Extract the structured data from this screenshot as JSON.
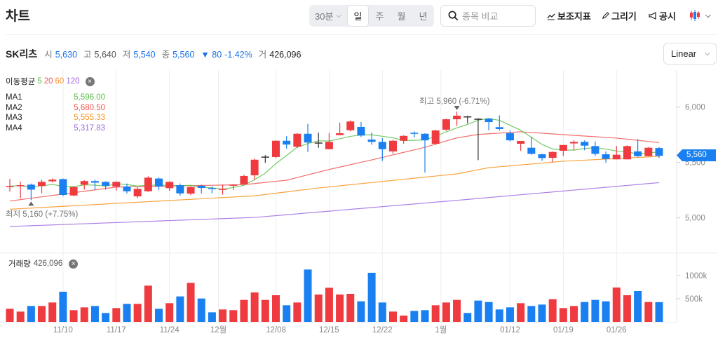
{
  "header": {
    "title": "차트",
    "interval": "30분",
    "periods": [
      "일",
      "주",
      "월",
      "년"
    ],
    "selected_period": "일",
    "search_placeholder": "종목 비교",
    "tools": [
      "보조지표",
      "그리기",
      "공시"
    ],
    "chart_type_icon": "candlestick-icon"
  },
  "stock": {
    "name": "SK리츠",
    "open_label": "시",
    "open": "5,630",
    "high_label": "고",
    "high": "5,640",
    "low_label": "저",
    "low": "5,540",
    "close_label": "종",
    "close": "5,560",
    "change": "▼ 80",
    "change_pct": "-1.42%",
    "volume_label": "거",
    "volume": "426,096"
  },
  "scale_select": "Linear",
  "ma_legend": {
    "label": "이동평균",
    "periods": [
      "5",
      "20",
      "60",
      "120"
    ],
    "rows": [
      {
        "name": "MA1",
        "value": "5,596.00",
        "color": "#5cc04a"
      },
      {
        "name": "MA2",
        "value": "5,680.50",
        "color": "#ef5350"
      },
      {
        "name": "MA3",
        "value": "5,555.33",
        "color": "#f7931e"
      },
      {
        "name": "MA4",
        "value": "5,317.83",
        "color": "#a06ae0"
      }
    ]
  },
  "volume_legend": {
    "label": "거래량",
    "value": "426,096"
  },
  "annotations": {
    "high": "최고  5,960 (-6.71%)",
    "low": "최저  5,160 (+7.75%)",
    "last_price": "5,560"
  },
  "colors": {
    "up": "#ef3a3f",
    "down": "#1a7ff0",
    "flat": "#333333",
    "accent": "#1a7ff0"
  },
  "chart_data": {
    "type": "candlestick",
    "price_ticks": [
      "6,000",
      "5,500",
      "5,000"
    ],
    "price_tick_values": [
      6000,
      5500,
      5000
    ],
    "volume_ticks": [
      "1000k",
      "500k"
    ],
    "volume_tick_values": [
      1000000,
      500000
    ],
    "x_ticks": [
      {
        "index": 5,
        "label": "11/10"
      },
      {
        "index": 10,
        "label": "11/17"
      },
      {
        "index": 15,
        "label": "11/24"
      },
      {
        "index": 19.6,
        "label": "12월"
      },
      {
        "index": 25,
        "label": "12/08"
      },
      {
        "index": 30,
        "label": "12/15"
      },
      {
        "index": 35,
        "label": "12/22"
      },
      {
        "index": 40.5,
        "label": "1월"
      },
      {
        "index": 47,
        "label": "01/12"
      },
      {
        "index": 52,
        "label": "01/19"
      },
      {
        "index": 57,
        "label": "01/26"
      }
    ],
    "ohlc": [
      [
        5283,
        5352,
        5238,
        5287
      ],
      [
        5291,
        5327,
        5175,
        5295
      ],
      [
        5300,
        5310,
        5160,
        5255
      ],
      [
        5287,
        5344,
        5222,
        5325
      ],
      [
        5330,
        5356,
        5320,
        5345
      ],
      [
        5350,
        5355,
        5195,
        5207
      ],
      [
        5202,
        5285,
        5195,
        5278
      ],
      [
        5300,
        5340,
        5255,
        5332
      ],
      [
        5332,
        5345,
        5255,
        5318
      ],
      [
        5325,
        5330,
        5255,
        5290
      ],
      [
        5283,
        5330,
        5245,
        5325
      ],
      [
        5283,
        5310,
        5220,
        5240
      ],
      [
        5194,
        5275,
        5180,
        5262
      ],
      [
        5240,
        5376,
        5235,
        5363
      ],
      [
        5355,
        5365,
        5251,
        5283
      ],
      [
        5268,
        5330,
        5245,
        5325
      ],
      [
        5295,
        5310,
        5200,
        5221
      ],
      [
        5219,
        5285,
        5205,
        5278
      ],
      [
        5290,
        5300,
        5220,
        5270
      ],
      [
        5270,
        5285,
        5220,
        5262
      ],
      [
        5257,
        5300,
        5210,
        5262
      ],
      [
        5290,
        5305,
        5250,
        5300
      ],
      [
        5304,
        5390,
        5300,
        5378
      ],
      [
        5384,
        5535,
        5340,
        5525
      ],
      [
        5553,
        5566,
        5497,
        5553
      ],
      [
        5549,
        5700,
        5540,
        5696
      ],
      [
        5696,
        5738,
        5624,
        5662
      ],
      [
        5642,
        5765,
        5630,
        5759
      ],
      [
        5759,
        5848,
        5595,
        5680
      ],
      [
        5680,
        5770,
        5633,
        5680
      ],
      [
        5620,
        5765,
        5618,
        5686
      ],
      [
        5747,
        5860,
        5745,
        5764
      ],
      [
        5791,
        5880,
        5780,
        5870
      ],
      [
        5821,
        5865,
        5730,
        5743
      ],
      [
        5707,
        5770,
        5660,
        5686
      ],
      [
        5686,
        5720,
        5515,
        5620
      ],
      [
        5600,
        5705,
        5580,
        5696
      ],
      [
        5696,
        5745,
        5670,
        5740
      ],
      [
        5768,
        5780,
        5725,
        5762
      ],
      [
        5759,
        5765,
        5409,
        5700
      ],
      [
        5669,
        5795,
        5660,
        5789
      ],
      [
        5796,
        5895,
        5785,
        5890
      ],
      [
        5890,
        5960,
        5830,
        5922
      ],
      [
        5916,
        5922,
        5853,
        5916
      ],
      [
        5895,
        5900,
        5521,
        5895
      ],
      [
        5895,
        5900,
        5790,
        5865
      ],
      [
        5819,
        5925,
        5788,
        5802
      ],
      [
        5764,
        5790,
        5690,
        5700
      ],
      [
        5669,
        5694,
        5606,
        5694
      ],
      [
        5633,
        5732,
        5570,
        5578
      ],
      [
        5574,
        5580,
        5515,
        5540
      ],
      [
        5542,
        5600,
        5504,
        5595
      ],
      [
        5606,
        5658,
        5560,
        5658
      ],
      [
        5672,
        5700,
        5610,
        5686
      ],
      [
        5686,
        5700,
        5610,
        5652
      ],
      [
        5648,
        5690,
        5560,
        5578
      ],
      [
        5574,
        5600,
        5497,
        5532
      ],
      [
        5528,
        5650,
        5528,
        5570
      ],
      [
        5528,
        5655,
        5528,
        5648
      ],
      [
        5600,
        5710,
        5550,
        5557
      ],
      [
        5557,
        5640,
        5557,
        5633
      ],
      [
        5630,
        5640,
        5540,
        5560
      ]
    ],
    "volume": [
      283000,
      222000,
      343000,
      343000,
      419000,
      651000,
      253000,
      313000,
      343000,
      192000,
      298000,
      389000,
      389000,
      783000,
      283000,
      404000,
      550000,
      843000,
      505000,
      207000,
      268000,
      253000,
      475000,
      636000,
      475000,
      576000,
      359000,
      419000,
      1131000,
      591000,
      737000,
      591000,
      606000,
      444000,
      1061000,
      419000,
      222000,
      136000,
      237000,
      253000,
      359000,
      419000,
      475000,
      192000,
      460000,
      429000,
      268000,
      313000,
      404000,
      343000,
      374000,
      490000,
      298000,
      343000,
      429000,
      475000,
      444000,
      742000,
      576000,
      667000,
      429000,
      426096
    ],
    "ma20": [
      [
        0,
        5152
      ],
      [
        10,
        5278
      ],
      [
        22,
        5300
      ],
      [
        26,
        5340
      ],
      [
        30,
        5437
      ],
      [
        34,
        5523
      ],
      [
        39,
        5637
      ],
      [
        42,
        5722
      ],
      [
        44,
        5753
      ],
      [
        48,
        5777
      ],
      [
        53,
        5745
      ],
      [
        57,
        5720
      ],
      [
        61,
        5680
      ]
    ],
    "ma60": [
      [
        0,
        5078
      ],
      [
        23,
        5199
      ],
      [
        29,
        5270
      ],
      [
        42,
        5397
      ],
      [
        45,
        5453
      ],
      [
        52,
        5511
      ],
      [
        61,
        5555
      ]
    ],
    "ma120": [
      [
        0,
        4922
      ],
      [
        23,
        5004
      ],
      [
        41,
        5150
      ],
      [
        61,
        5318
      ]
    ]
  }
}
